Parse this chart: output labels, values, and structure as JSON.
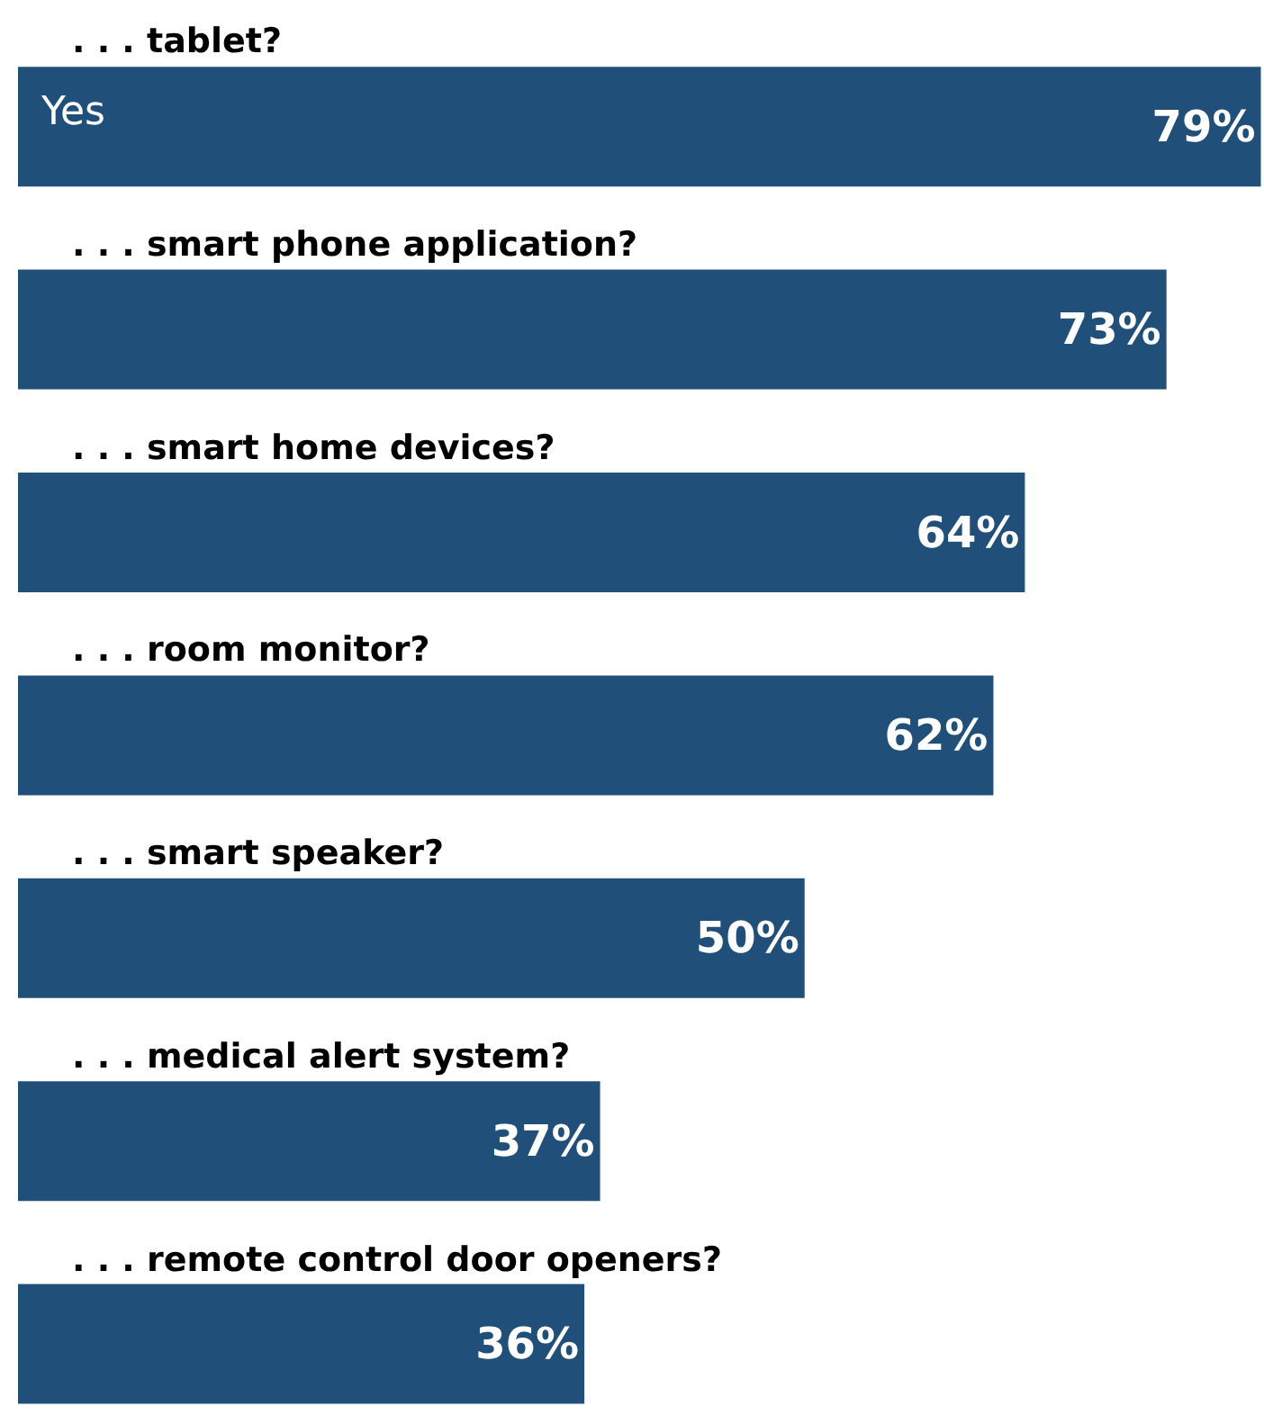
{
  "chart_data": {
    "type": "bar",
    "orientation": "horizontal",
    "categories": [
      ". . . tablet?",
      ". . . smart phone application?",
      ". . . smart home devices?",
      ". . . room monitor?",
      ". . . smart speaker?",
      ". . . medical alert system?",
      ". . . remote control door openers?"
    ],
    "series": [
      {
        "name": "Yes",
        "color": "#204f79",
        "values": [
          79,
          73,
          64,
          62,
          50,
          37,
          36
        ],
        "value_labels": [
          "79%",
          "73%",
          "64%",
          "62%",
          "50%",
          "37%",
          "36%"
        ]
      }
    ],
    "xlim": [
      0,
      79.2
    ],
    "legend": false
  }
}
